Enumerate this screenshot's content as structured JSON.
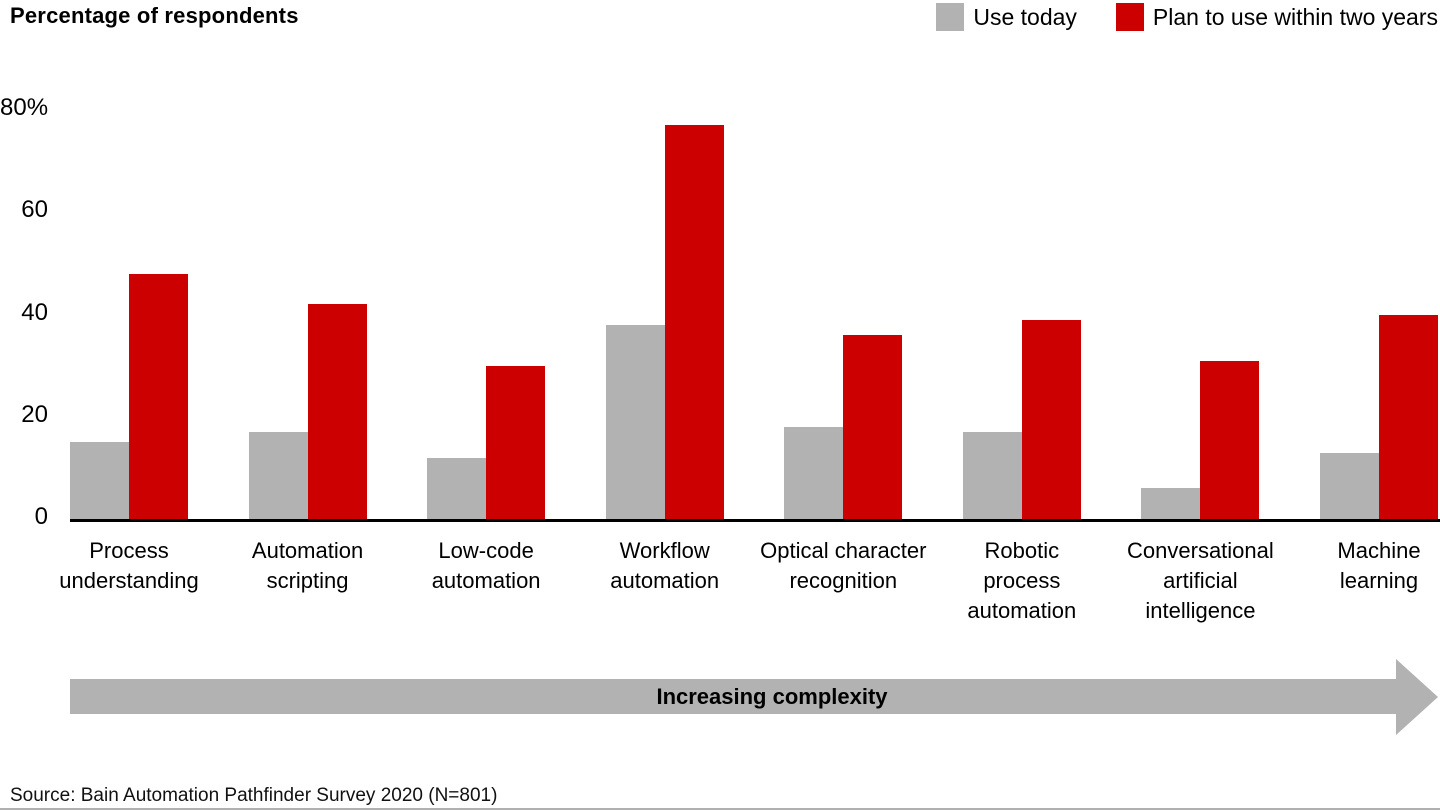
{
  "header": {
    "title": "Percentage of respondents"
  },
  "legend": [
    {
      "label": "Use today",
      "color": "#b2b2b2"
    },
    {
      "label": "Plan to use within two years",
      "color": "#cc0000"
    }
  ],
  "chart_data": {
    "type": "bar",
    "title": "Percentage of respondents",
    "categories": [
      "Process\nunderstanding",
      "Automation\nscripting",
      "Low-code\nautomation",
      "Workflow\nautomation",
      "Optical character\nrecognition",
      "Robotic\nprocess\nautomation",
      "Conversational\nartificial\nintelligence",
      "Machine\nlearning"
    ],
    "series": [
      {
        "name": "Use today",
        "color": "#b2b2b2",
        "values": [
          15,
          17,
          12,
          38,
          18,
          17,
          6,
          13
        ]
      },
      {
        "name": "Plan to use within two years",
        "color": "#cc0000",
        "values": [
          48,
          42,
          30,
          77,
          36,
          39,
          31,
          40
        ]
      }
    ],
    "xlabel": "",
    "ylabel": "Percentage of respondents",
    "ylim": [
      0,
      80
    ],
    "yticks": [
      {
        "value": 80,
        "label": "80%"
      },
      {
        "value": 60,
        "label": "60"
      },
      {
        "value": 40,
        "label": "40"
      },
      {
        "value": 20,
        "label": "20"
      },
      {
        "value": 0,
        "label": "0"
      }
    ],
    "grid": false,
    "legend_position": "top-right",
    "axis_color": "#000000"
  },
  "complexity_arrow": {
    "label": "Increasing complexity",
    "color": "#b2b2b2"
  },
  "footer": {
    "source": "Source: Bain Automation Pathfinder Survey 2020 (N=801)"
  }
}
